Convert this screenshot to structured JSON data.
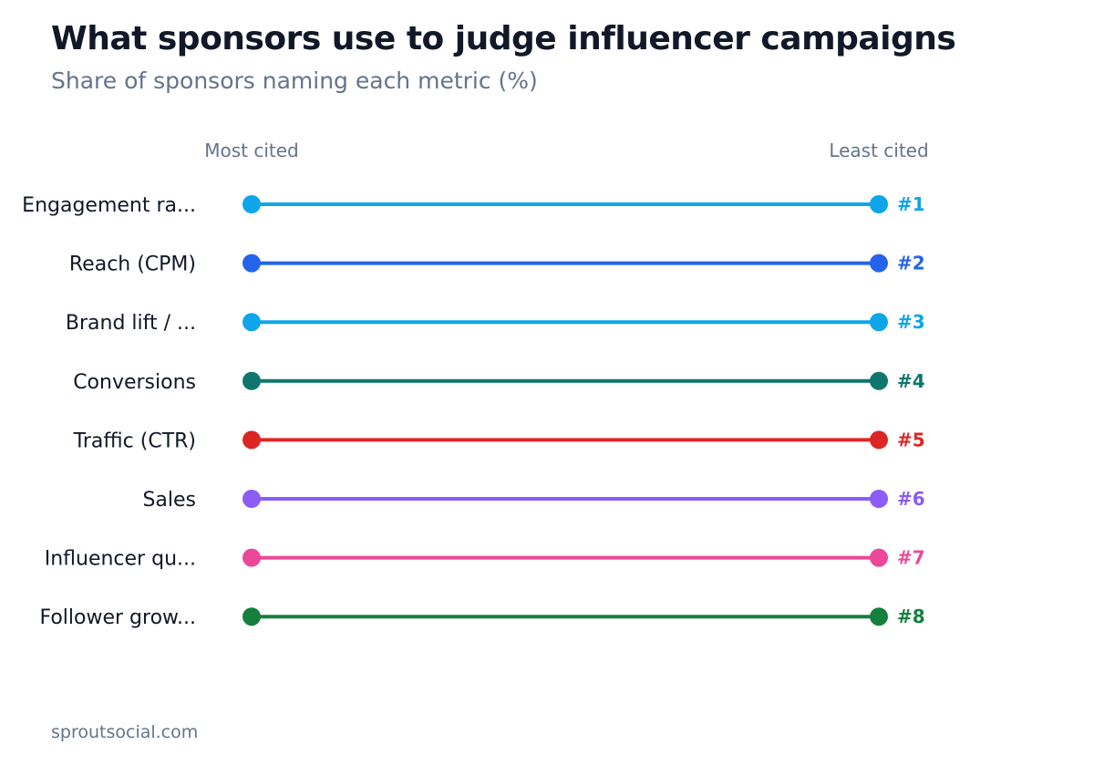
{
  "title": "What sponsors use to judge influencer campaigns",
  "subtitle": "Share of sponsors naming each metric (%)",
  "source": "sproutsocial.com",
  "chart_data": {
    "type": "slope",
    "left_label": "Most cited",
    "right_label": "Least cited",
    "grid": false,
    "rows": [
      {
        "label": "Engagement ra...",
        "rank": "#1",
        "color": "#0ea5e9"
      },
      {
        "label": "Reach (CPM)",
        "rank": "#2",
        "color": "#2563eb"
      },
      {
        "label": "Brand lift / ...",
        "rank": "#3",
        "color": "#0ea5e9"
      },
      {
        "label": "Conversions",
        "rank": "#4",
        "color": "#0f766e"
      },
      {
        "label": "Traffic (CTR)",
        "rank": "#5",
        "color": "#dc2626"
      },
      {
        "label": "Sales",
        "rank": "#6",
        "color": "#8b5cf6"
      },
      {
        "label": "Influencer qu...",
        "rank": "#7",
        "color": "#ec4899"
      },
      {
        "label": "Follower grow...",
        "rank": "#8",
        "color": "#15803d"
      }
    ]
  }
}
